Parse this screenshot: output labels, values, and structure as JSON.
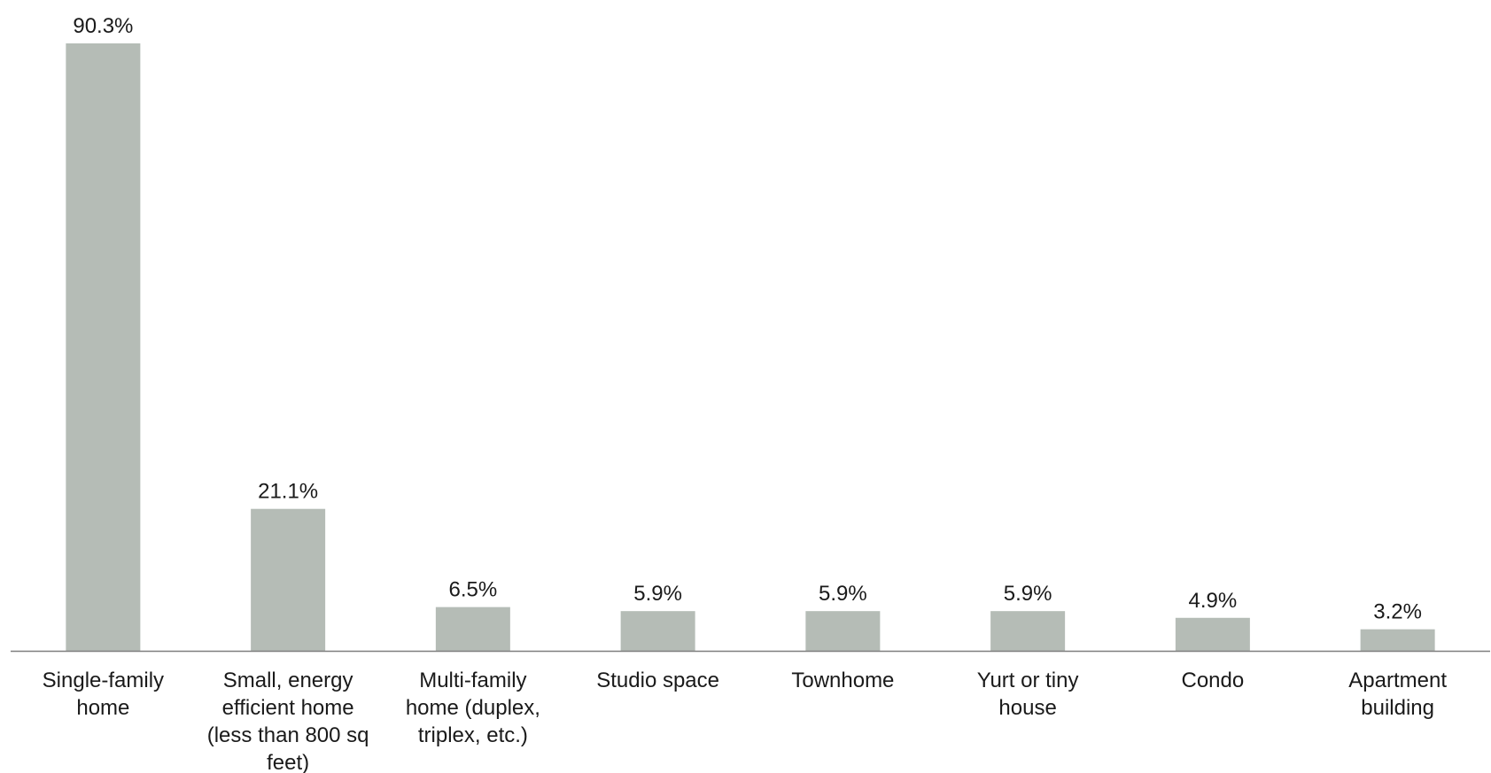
{
  "chart_data": {
    "type": "bar",
    "categories": [
      [
        "Single-family",
        "home"
      ],
      [
        "Small, energy",
        "efficient home",
        "(less than 800 sq",
        "feet)"
      ],
      [
        "Multi-family",
        "home (duplex,",
        "triplex, etc.)"
      ],
      [
        "Studio space"
      ],
      [
        "Townhome"
      ],
      [
        "Yurt or tiny",
        "house"
      ],
      [
        "Condo"
      ],
      [
        "Apartment",
        "building"
      ]
    ],
    "values": [
      90.3,
      21.1,
      6.5,
      5.9,
      5.9,
      5.9,
      4.9,
      3.2
    ],
    "value_labels": [
      "90.3%",
      "21.1%",
      "6.5%",
      "5.9%",
      "5.9%",
      "5.9%",
      "4.9%",
      "3.2%"
    ],
    "title": "",
    "xlabel": "",
    "ylabel": "",
    "ylim": [
      0,
      90.3
    ],
    "grid": false,
    "legend": "none",
    "colors": {
      "bar": "#b5bcb6",
      "axis": "#7f7f7f",
      "text": "#1a1a1a"
    }
  }
}
